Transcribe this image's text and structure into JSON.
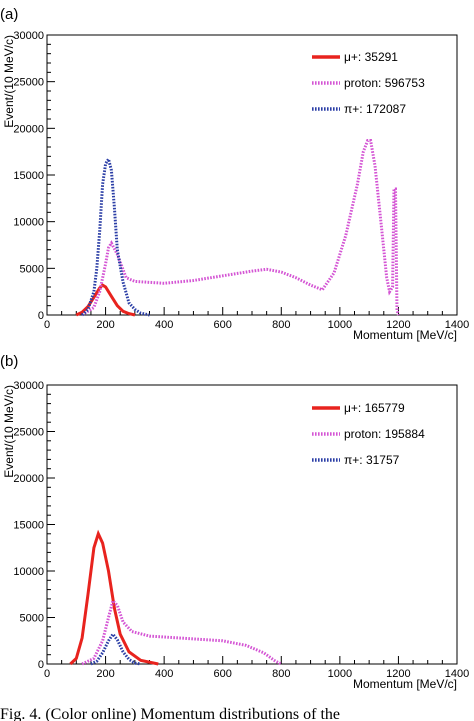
{
  "chart_data": [
    {
      "panel_label": "(a)",
      "type": "line",
      "xlabel": "Momentum [MeV/c]",
      "ylabel": "Event/(10 MeV/c)",
      "xlim": [
        0,
        1400
      ],
      "ylim": [
        0,
        30000
      ],
      "x_ticks": [
        "0",
        "200",
        "400",
        "600",
        "800",
        "1000",
        "1200",
        "1400"
      ],
      "y_ticks": [
        "0",
        "5000",
        "10000",
        "15000",
        "20000",
        "25000",
        "30000"
      ],
      "legend_position": "top-right",
      "series": [
        {
          "name": "μ+: 35291",
          "color": "#e8231e",
          "style": "solid",
          "points": [
            [
              100,
              0
            ],
            [
              120,
              300
            ],
            [
              140,
              900
            ],
            [
              160,
              1900
            ],
            [
              180,
              2900
            ],
            [
              190,
              3200
            ],
            [
              200,
              3000
            ],
            [
              220,
              2000
            ],
            [
              240,
              1000
            ],
            [
              260,
              400
            ],
            [
              280,
              150
            ],
            [
              300,
              0
            ]
          ]
        },
        {
          "name": "proton: 596753",
          "color": "#d455d4",
          "style": "dotted",
          "points": [
            [
              120,
              0
            ],
            [
              160,
              800
            ],
            [
              180,
              2500
            ],
            [
              200,
              5500
            ],
            [
              210,
              7200
            ],
            [
              220,
              7700
            ],
            [
              240,
              6500
            ],
            [
              270,
              4000
            ],
            [
              300,
              3600
            ],
            [
              400,
              3400
            ],
            [
              500,
              3700
            ],
            [
              600,
              4200
            ],
            [
              700,
              4700
            ],
            [
              750,
              4900
            ],
            [
              800,
              4600
            ],
            [
              850,
              4000
            ],
            [
              900,
              3200
            ],
            [
              940,
              2700
            ],
            [
              980,
              4500
            ],
            [
              1020,
              8500
            ],
            [
              1060,
              14000
            ],
            [
              1080,
              17500
            ],
            [
              1095,
              18700
            ],
            [
              1105,
              18700
            ],
            [
              1120,
              16000
            ],
            [
              1140,
              10000
            ],
            [
              1160,
              4000
            ],
            [
              1170,
              2500
            ],
            [
              1180,
              3000
            ],
            [
              1185,
              13500
            ],
            [
              1190,
              13500
            ],
            [
              1195,
              500
            ],
            [
              1200,
              0
            ]
          ]
        },
        {
          "name": "π+: 172087",
          "color": "#2b3ea6",
          "style": "dotted",
          "points": [
            [
              120,
              0
            ],
            [
              140,
              600
            ],
            [
              160,
              2500
            ],
            [
              170,
              5000
            ],
            [
              180,
              9000
            ],
            [
              190,
              14000
            ],
            [
              200,
              16200
            ],
            [
              210,
              16700
            ],
            [
              220,
              15500
            ],
            [
              230,
              11500
            ],
            [
              240,
              7000
            ],
            [
              260,
              3500
            ],
            [
              280,
              1300
            ],
            [
              300,
              600
            ],
            [
              320,
              200
            ],
            [
              350,
              0
            ]
          ]
        }
      ]
    },
    {
      "panel_label": "(b)",
      "type": "line",
      "xlabel": "Momentum [MeV/c]",
      "ylabel": "Event/(10 MeV/c)",
      "xlim": [
        0,
        1400
      ],
      "ylim": [
        0,
        30000
      ],
      "x_ticks": [
        "0",
        "200",
        "400",
        "600",
        "800",
        "1000",
        "1200",
        "1400"
      ],
      "y_ticks": [
        "0",
        "5000",
        "10000",
        "15000",
        "20000",
        "25000",
        "30000"
      ],
      "legend_position": "top-right",
      "series": [
        {
          "name": "μ+: 165779",
          "color": "#e8231e",
          "style": "solid",
          "points": [
            [
              80,
              0
            ],
            [
              100,
              600
            ],
            [
              120,
              2800
            ],
            [
              140,
              7500
            ],
            [
              160,
              12500
            ],
            [
              175,
              14000
            ],
            [
              190,
              13000
            ],
            [
              210,
              10000
            ],
            [
              230,
              6000
            ],
            [
              250,
              3200
            ],
            [
              280,
              1300
            ],
            [
              320,
              400
            ],
            [
              380,
              0
            ]
          ]
        },
        {
          "name": "proton: 195884",
          "color": "#d455d4",
          "style": "dotted",
          "points": [
            [
              120,
              0
            ],
            [
              160,
              600
            ],
            [
              190,
              2500
            ],
            [
              210,
              5000
            ],
            [
              225,
              6800
            ],
            [
              240,
              6300
            ],
            [
              260,
              4500
            ],
            [
              290,
              3500
            ],
            [
              350,
              3000
            ],
            [
              400,
              2900
            ],
            [
              500,
              2700
            ],
            [
              600,
              2500
            ],
            [
              680,
              2000
            ],
            [
              740,
              1200
            ],
            [
              780,
              300
            ],
            [
              800,
              0
            ]
          ]
        },
        {
          "name": "π+: 31757",
          "color": "#2b3ea6",
          "style": "dotted",
          "points": [
            [
              150,
              0
            ],
            [
              170,
              300
            ],
            [
              190,
              1200
            ],
            [
              210,
              2500
            ],
            [
              225,
              3200
            ],
            [
              240,
              2600
            ],
            [
              260,
              1300
            ],
            [
              280,
              500
            ],
            [
              300,
              100
            ],
            [
              320,
              0
            ]
          ]
        }
      ]
    }
  ],
  "caption": "Fig. 4. (Color online) Momentum distributions of the"
}
